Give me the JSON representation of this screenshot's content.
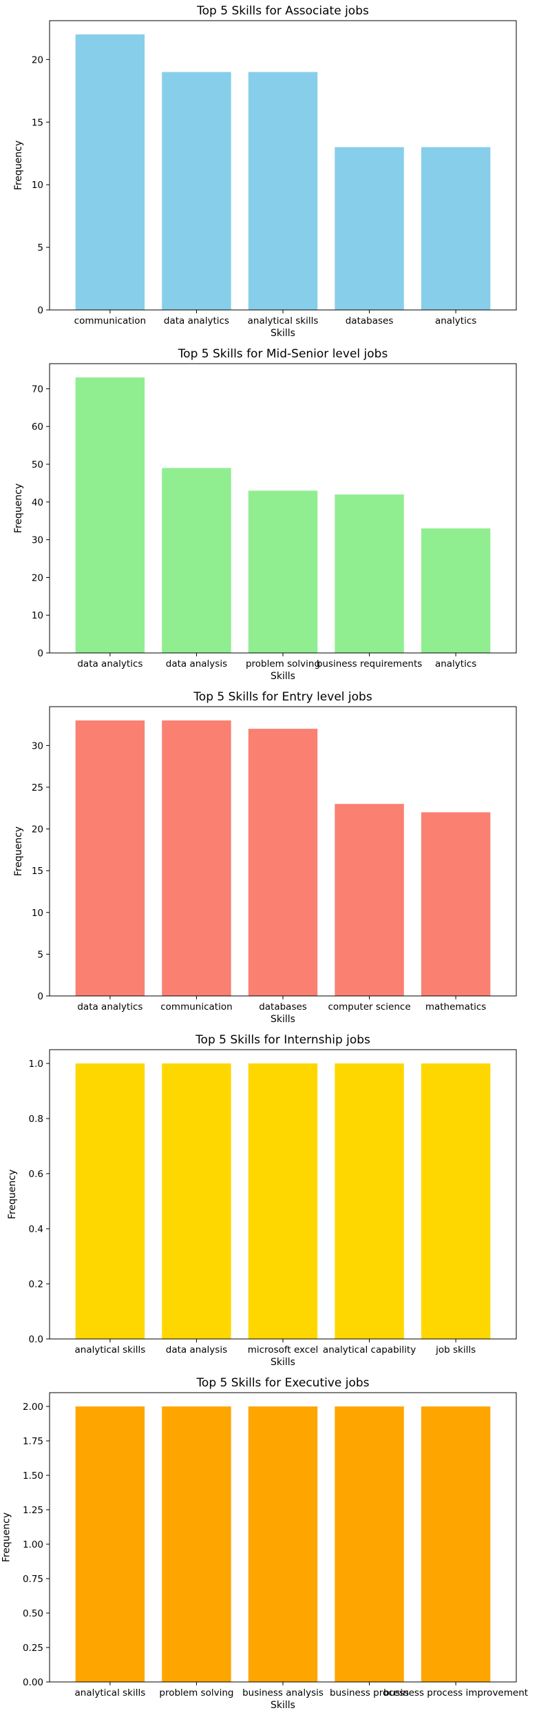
{
  "chart_data": [
    {
      "type": "bar",
      "title": "Top 5 Skills for Associate jobs",
      "xlabel": "Skills",
      "ylabel": "Frequency",
      "categories": [
        "communication",
        "data analytics",
        "analytical skills",
        "databases",
        "analytics"
      ],
      "values": [
        22,
        19,
        19,
        13,
        13
      ],
      "ylim": [
        0,
        23.1
      ],
      "yticks": [
        0,
        5,
        10,
        15,
        20
      ],
      "ytick_labels": [
        "0",
        "5",
        "10",
        "15",
        "20"
      ],
      "color": "#87CEEB"
    },
    {
      "type": "bar",
      "title": "Top 5 Skills for Mid-Senior level jobs",
      "xlabel": "Skills",
      "ylabel": "Frequency",
      "categories": [
        "data analytics",
        "data analysis",
        "problem solving",
        "business requirements",
        "analytics"
      ],
      "values": [
        73,
        49,
        43,
        42,
        33
      ],
      "ylim": [
        0,
        76.65
      ],
      "yticks": [
        0,
        10,
        20,
        30,
        40,
        50,
        60,
        70
      ],
      "ytick_labels": [
        "0",
        "10",
        "20",
        "30",
        "40",
        "50",
        "60",
        "70"
      ],
      "color": "#90EE90"
    },
    {
      "type": "bar",
      "title": "Top 5 Skills for Entry level jobs",
      "xlabel": "Skills",
      "ylabel": "Frequency",
      "categories": [
        "data analytics",
        "communication",
        "databases",
        "computer science",
        "mathematics"
      ],
      "values": [
        33,
        33,
        32,
        23,
        22
      ],
      "ylim": [
        0,
        34.65
      ],
      "yticks": [
        0,
        5,
        10,
        15,
        20,
        25,
        30
      ],
      "ytick_labels": [
        "0",
        "5",
        "10",
        "15",
        "20",
        "25",
        "30"
      ],
      "color": "#FA8072"
    },
    {
      "type": "bar",
      "title": "Top 5 Skills for Internship jobs",
      "xlabel": "Skills",
      "ylabel": "Frequency",
      "categories": [
        "analytical skills",
        "data analysis",
        "microsoft excel",
        "analytical capability",
        "job skills"
      ],
      "values": [
        1,
        1,
        1,
        1,
        1
      ],
      "ylim": [
        0,
        1.05
      ],
      "yticks": [
        0,
        0.2,
        0.4,
        0.6,
        0.8,
        1.0
      ],
      "ytick_labels": [
        "0.0",
        "0.2",
        "0.4",
        "0.6",
        "0.8",
        "1.0"
      ],
      "color": "#FFD700"
    },
    {
      "type": "bar",
      "title": "Top 5 Skills for Executive jobs",
      "xlabel": "Skills",
      "ylabel": "Frequency",
      "categories": [
        "analytical skills",
        "problem solving",
        "business analysis",
        "business process",
        "business process improvement"
      ],
      "values": [
        2,
        2,
        2,
        2,
        2
      ],
      "ylim": [
        0,
        2.1
      ],
      "yticks": [
        0,
        0.25,
        0.5,
        0.75,
        1.0,
        1.25,
        1.5,
        1.75,
        2.0
      ],
      "ytick_labels": [
        "0.00",
        "0.25",
        "0.50",
        "0.75",
        "1.00",
        "1.25",
        "1.50",
        "1.75",
        "2.00"
      ],
      "color": "#FFA500"
    }
  ]
}
